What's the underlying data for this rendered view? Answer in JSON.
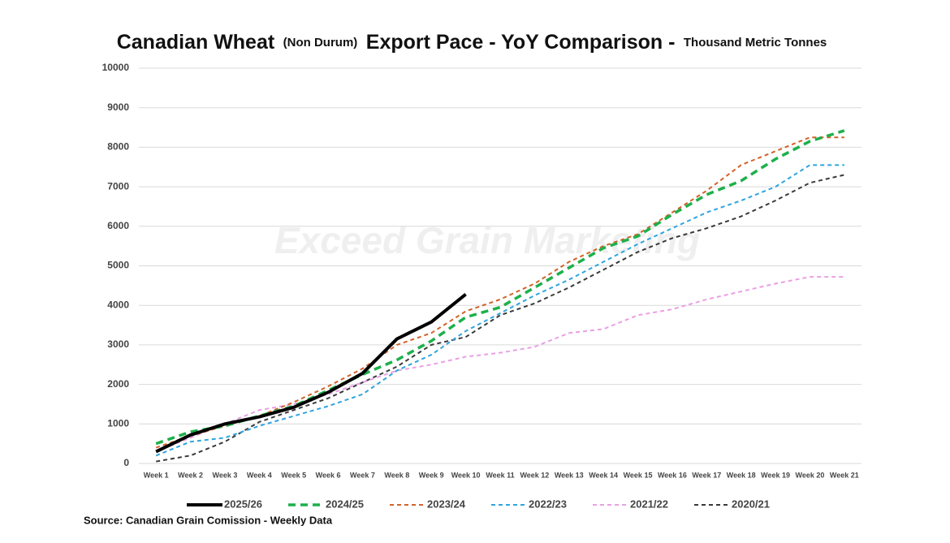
{
  "chart_data": {
    "type": "line",
    "title_parts": [
      "Canadian Wheat",
      "(Non Durum)",
      "Export Pace - YoY Comparison -",
      "Thousand Metric Tonnes"
    ],
    "watermark": "Exceed Grain Marketing",
    "source": "Source: Canadian Grain Comission - Weekly Data",
    "categories": [
      "Week 1",
      "Week 2",
      "Week 3",
      "Week 4",
      "Week 5",
      "Week 6",
      "Week 7",
      "Week 8",
      "Week 9",
      "Week 10",
      "Week 11",
      "Week 12",
      "Week 13",
      "Week 14",
      "Week 15",
      "Week 16",
      "Week 17",
      "Week 18",
      "Week 19",
      "Week 20",
      "Week 21"
    ],
    "ylim": [
      0,
      10000
    ],
    "yticks": [
      0,
      1000,
      2000,
      3000,
      4000,
      5000,
      6000,
      7000,
      8000,
      9000,
      10000
    ],
    "grid": true,
    "legend": "bottom",
    "series": [
      {
        "name": "2025/26",
        "color": "#000000",
        "style": "solid",
        "values": [
          300,
          720,
          1000,
          1180,
          1420,
          1800,
          2280,
          3150,
          3580,
          4280,
          null,
          null,
          null,
          null,
          null,
          null,
          null,
          null,
          null,
          null,
          null
        ]
      },
      {
        "name": "2024/25",
        "color": "#1db04b",
        "style": "dashed-thick",
        "values": [
          500,
          800,
          950,
          1200,
          1450,
          1850,
          2250,
          2620,
          3100,
          3700,
          3950,
          4450,
          4950,
          5450,
          5750,
          6300,
          6800,
          7150,
          7700,
          8150,
          8420
        ]
      },
      {
        "name": "2023/24",
        "color": "#d2622a",
        "style": "dashed",
        "values": [
          400,
          700,
          950,
          1200,
          1550,
          1950,
          2400,
          3000,
          3300,
          3850,
          4150,
          4550,
          5100,
          5500,
          5800,
          6350,
          6900,
          7550,
          7900,
          8250,
          8250
        ]
      },
      {
        "name": "2022/23",
        "color": "#2ea4e0",
        "style": "dashed",
        "values": [
          200,
          550,
          650,
          950,
          1200,
          1450,
          1750,
          2350,
          2750,
          3350,
          3800,
          4250,
          4650,
          5100,
          5550,
          5950,
          6350,
          6650,
          7000,
          7550,
          7550
        ]
      },
      {
        "name": "2021/22",
        "color": "#e9a0e6",
        "style": "dashed",
        "values": [
          300,
          650,
          1000,
          1350,
          1500,
          1750,
          2050,
          2350,
          2500,
          2700,
          2800,
          2950,
          3300,
          3400,
          3750,
          3900,
          4150,
          4350,
          4550,
          4720,
          4720
        ]
      },
      {
        "name": "2020/21",
        "color": "#3a3a3a",
        "style": "dashed",
        "values": [
          50,
          200,
          550,
          1050,
          1350,
          1650,
          2050,
          2450,
          3000,
          3200,
          3750,
          4050,
          4450,
          4900,
          5350,
          5700,
          5950,
          6250,
          6650,
          7100,
          7300
        ]
      }
    ]
  }
}
